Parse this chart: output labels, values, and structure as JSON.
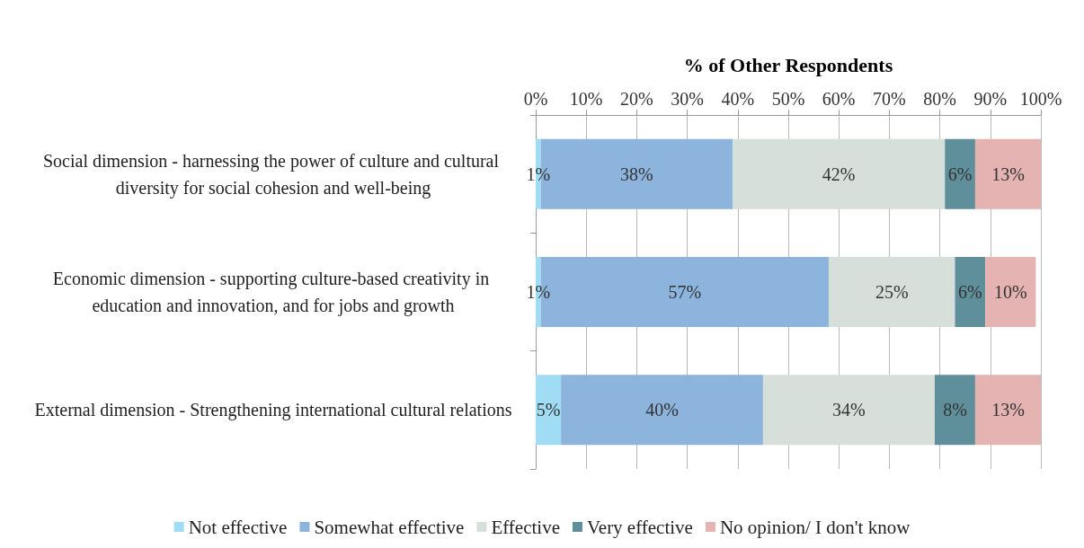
{
  "chart_data": {
    "type": "bar",
    "orientation": "horizontal",
    "stacked": true,
    "xlabel": "% of Other Respondents",
    "categories": [
      "Social dimension - harnessing the power of culture and cultural diversity for social cohesion and well-being",
      "Economic dimension - supporting culture-based creativity in education and innovation, and for jobs and growth",
      "External dimension - Strengthening international cultural relations"
    ],
    "series": [
      {
        "name": "Not effective",
        "color": "#a0dcf4",
        "values": [
          1,
          1,
          5
        ],
        "value_labels": [
          "1%",
          "1%",
          "5%"
        ]
      },
      {
        "name": "Somewhat effective",
        "color": "#8db4dc",
        "values": [
          38,
          57,
          40
        ],
        "value_labels": [
          "38%",
          "57%",
          "40%"
        ]
      },
      {
        "name": "Effective",
        "color": "#d6dfda",
        "values": [
          42,
          25,
          34
        ],
        "value_labels": [
          "42%",
          "25%",
          "34%"
        ]
      },
      {
        "name": "Very effective",
        "color": "#5f8f9a",
        "values": [
          6,
          6,
          8
        ],
        "value_labels": [
          "6%",
          "6%",
          "8%"
        ]
      },
      {
        "name": "No opinion/ I don't know",
        "color": "#e6b3b3",
        "values": [
          13,
          10,
          13
        ],
        "value_labels": [
          "13%",
          "10%",
          "13%"
        ]
      }
    ],
    "xlim": [
      0,
      100
    ],
    "xticks": [
      {
        "value": 0,
        "label": "0%"
      },
      {
        "value": 10,
        "label": "10%"
      },
      {
        "value": 20,
        "label": "20%"
      },
      {
        "value": 30,
        "label": "30%"
      },
      {
        "value": 40,
        "label": "40%"
      },
      {
        "value": 50,
        "label": "50%"
      },
      {
        "value": 60,
        "label": "60%"
      },
      {
        "value": 70,
        "label": "70%"
      },
      {
        "value": 80,
        "label": "80%"
      },
      {
        "value": 90,
        "label": "90%"
      },
      {
        "value": 100,
        "label": "100%"
      }
    ],
    "grid": "x",
    "legend": "bottom"
  }
}
